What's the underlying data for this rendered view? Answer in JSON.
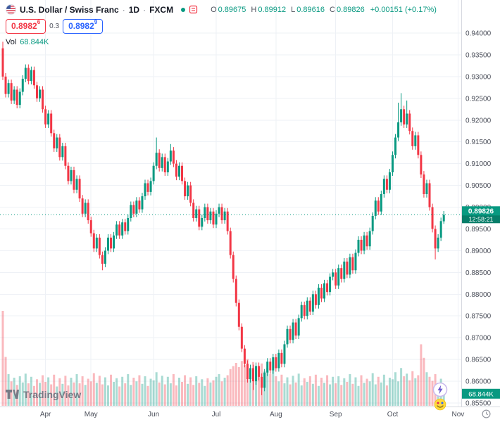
{
  "header": {
    "symbol_title": "U.S. Dollar / Swiss Franc",
    "sep": "·",
    "interval": "1D",
    "exchange": "FXCM",
    "ohlc": {
      "o_label": "O",
      "o": "0.89675",
      "h_label": "H",
      "h": "0.89912",
      "l_label": "L",
      "l": "0.89616",
      "c_label": "C",
      "c": "0.89826",
      "change": "+0.00151 (+0.17%)"
    }
  },
  "quote_bar": {
    "sell_price": "0.8982",
    "sell_sup": "6",
    "spread": "0.3",
    "buy_price": "0.8982",
    "buy_sup": "9"
  },
  "volume_row": {
    "label": "Vol",
    "value": "68.844K"
  },
  "footer": {
    "logo_text": "TradingView"
  },
  "icons": [
    "us-flag-icon",
    "market-status-dot-icon",
    "legend-list-icon",
    "tradingview-logo-icon",
    "lightning-icon",
    "emoji-face-icon",
    "clock-settings-icon"
  ],
  "colors": {
    "up": "#089981",
    "down": "#F23645",
    "buy": "#2962FF",
    "sell": "#F23645",
    "grid": "#eef1f6",
    "axis_text": "#4a4e59",
    "axis_border": "#d6d9e0",
    "vol_up": "rgba(8,153,129,0.35)",
    "vol_down": "rgba(242,54,69,0.35)"
  },
  "chart_data": {
    "type": "candlestick",
    "title": "U.S. Dollar / Swiss Franc 1D FXCM",
    "legend_position": "top-left",
    "grid": true,
    "last_price": "0.89826",
    "countdown": "12:58:21",
    "volume_axis_label": "68.844K",
    "y_axis": {
      "min": 0.855,
      "max": 0.94,
      "step": 0.005,
      "tick_labels": [
        "0.94000",
        "0.93500",
        "0.93000",
        "0.92500",
        "0.92000",
        "0.91500",
        "0.91000",
        "0.90500",
        "0.90000",
        "0.89500",
        "0.89000",
        "0.88500",
        "0.88000",
        "0.87500",
        "0.87000",
        "0.86500",
        "0.86000",
        "0.85500"
      ]
    },
    "x_ticks": [
      {
        "label": "Apr",
        "i": 15
      },
      {
        "label": "May",
        "i": 31
      },
      {
        "label": "Jun",
        "i": 53
      },
      {
        "label": "Jul",
        "i": 75
      },
      {
        "label": "Aug",
        "i": 96
      },
      {
        "label": "Sep",
        "i": 117
      },
      {
        "label": "Oct",
        "i": 137
      },
      {
        "label": "Nov",
        "i": 160
      }
    ],
    "first_open": 0.9365,
    "default_wick": 0.0008,
    "closes": [
      0.93,
      0.926,
      0.9285,
      0.9245,
      0.927,
      0.9235,
      0.9265,
      0.9295,
      0.932,
      0.929,
      0.9315,
      0.928,
      0.925,
      0.927,
      0.9225,
      0.919,
      0.9215,
      0.917,
      0.9135,
      0.916,
      0.9115,
      0.914,
      0.9095,
      0.906,
      0.9085,
      0.904,
      0.9065,
      0.902,
      0.8985,
      0.901,
      0.897,
      0.894,
      0.8905,
      0.893,
      0.889,
      0.887,
      0.89,
      0.893,
      0.8905,
      0.8935,
      0.896,
      0.8935,
      0.8965,
      0.8945,
      0.8975,
      0.9005,
      0.8985,
      0.9015,
      0.8995,
      0.9025,
      0.9055,
      0.9035,
      0.906,
      0.9095,
      0.9125,
      0.909,
      0.9115,
      0.908,
      0.9105,
      0.913,
      0.91,
      0.907,
      0.9095,
      0.906,
      0.9025,
      0.905,
      0.901,
      0.8975,
      0.8995,
      0.8955,
      0.8975,
      0.9,
      0.897,
      0.899,
      0.896,
      0.8985,
      0.9,
      0.897,
      0.899,
      0.8945,
      0.889,
      0.8835,
      0.878,
      0.8725,
      0.8675,
      0.864,
      0.8605,
      0.863,
      0.86,
      0.8635,
      0.861,
      0.8585,
      0.862,
      0.8645,
      0.8625,
      0.8655,
      0.863,
      0.8665,
      0.864,
      0.8685,
      0.872,
      0.8695,
      0.8735,
      0.8705,
      0.8745,
      0.8775,
      0.875,
      0.8785,
      0.876,
      0.88,
      0.8775,
      0.8815,
      0.879,
      0.8825,
      0.8805,
      0.884,
      0.885,
      0.882,
      0.886,
      0.8835,
      0.8875,
      0.8845,
      0.8885,
      0.8855,
      0.8895,
      0.8925,
      0.89,
      0.8935,
      0.891,
      0.8945,
      0.898,
      0.9015,
      0.899,
      0.903,
      0.9065,
      0.904,
      0.908,
      0.912,
      0.916,
      0.9195,
      0.9225,
      0.919,
      0.9215,
      0.9175,
      0.914,
      0.9165,
      0.912,
      0.9075,
      0.903,
      0.9055,
      0.9,
      0.895,
      0.8905,
      0.893,
      0.8968,
      0.89826
    ],
    "ohlc_overrides": {
      "0": {
        "o": 0.9365,
        "h": 0.938
      },
      "35": {
        "l": 0.8855
      },
      "54": {
        "h": 0.916
      },
      "59": {
        "h": 0.9145
      },
      "76": {
        "h": 0.9008
      },
      "88": {
        "l": 0.858
      },
      "91": {
        "l": 0.8568
      },
      "139": {
        "h": 0.924
      },
      "140": {
        "h": 0.9262
      },
      "142": {
        "h": 0.9245
      },
      "152": {
        "l": 0.888
      },
      "155": {
        "o": 0.89675,
        "h": 0.89912,
        "l": 0.89616
      }
    },
    "volumes_k": [
      540,
      278,
      180,
      139,
      160,
      119,
      168,
      133,
      183,
      128,
      165,
      113,
      151,
      131,
      174,
      136,
      162,
      122,
      177,
      110,
      157,
      125,
      171,
      116,
      160,
      133,
      180,
      128,
      168,
      119,
      154,
      139,
      186,
      131,
      171,
      122,
      162,
      116,
      177,
      136,
      157,
      110,
      165,
      128,
      180,
      119,
      160,
      139,
      174,
      125,
      168,
      113,
      154,
      145,
      191,
      133,
      171,
      122,
      165,
      128,
      180,
      116,
      160,
      136,
      174,
      125,
      162,
      119,
      168,
      131,
      151,
      113,
      157,
      133,
      145,
      165,
      180,
      139,
      160,
      174,
      209,
      226,
      244,
      220,
      255,
      232,
      267,
      215,
      249,
      203,
      223,
      241,
      197,
      215,
      180,
      203,
      168,
      139,
      177,
      128,
      162,
      122,
      171,
      133,
      183,
      116,
      157,
      136,
      168,
      125,
      177,
      113,
      160,
      131,
      174,
      122,
      165,
      128,
      168,
      119,
      157,
      136,
      180,
      125,
      162,
      113,
      174,
      131,
      154,
      139,
      186,
      122,
      165,
      133,
      177,
      116,
      160,
      151,
      191,
      139,
      215,
      168,
      183,
      145,
      197,
      157,
      174,
      350,
      273,
      191,
      165,
      142,
      180,
      131,
      154,
      68.844
    ]
  }
}
